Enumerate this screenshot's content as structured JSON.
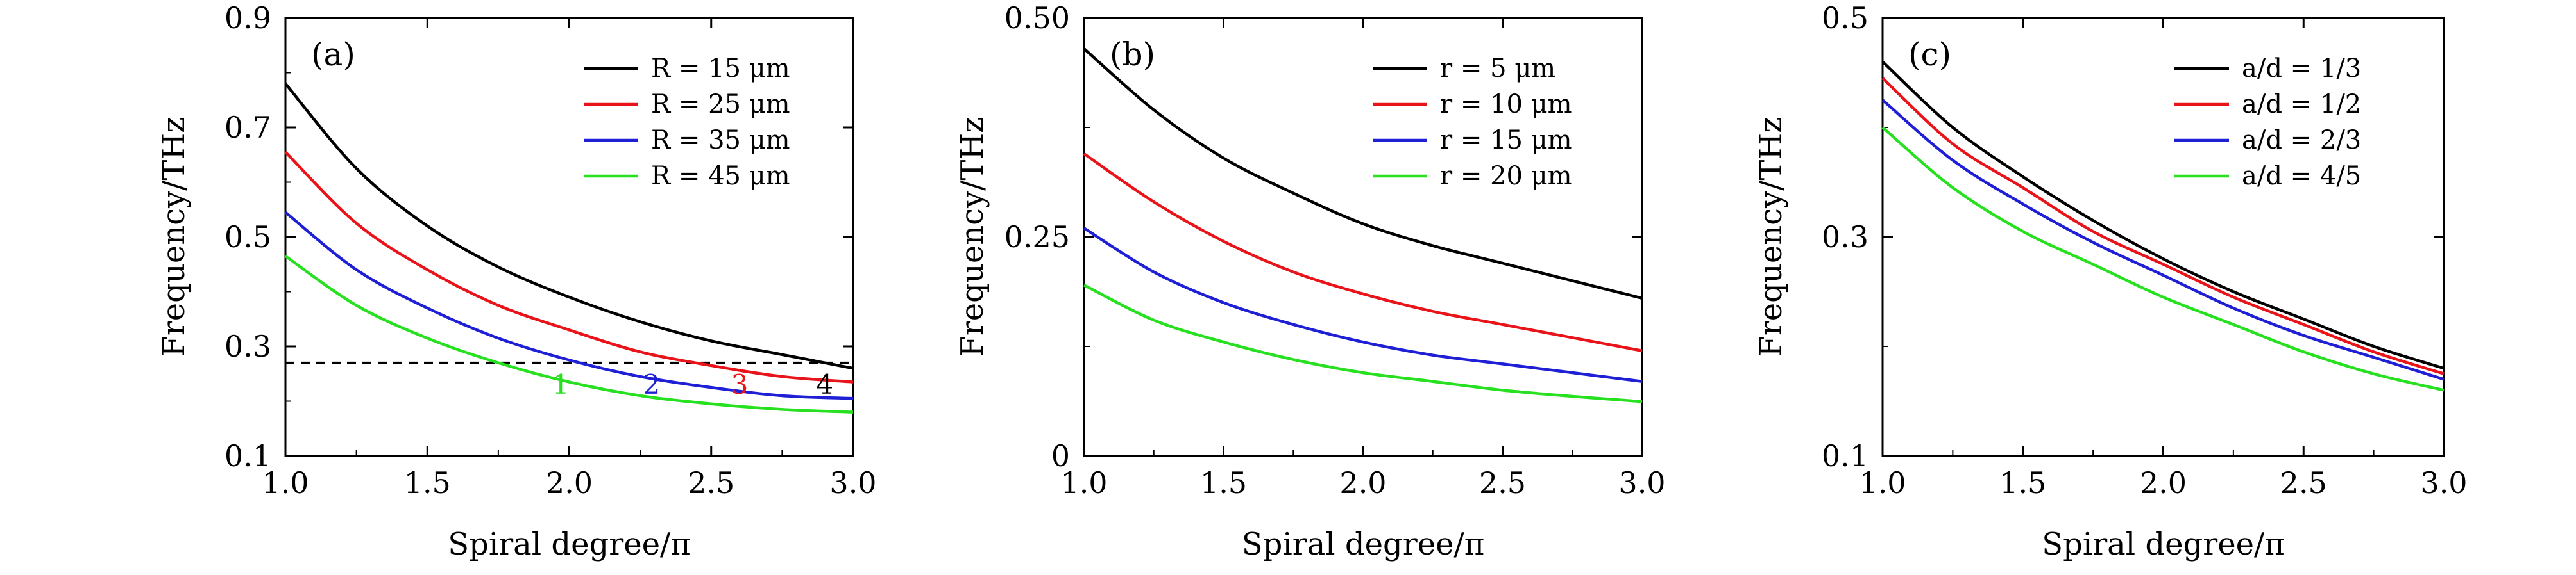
{
  "chart_data": [
    {
      "type": "line",
      "panel_label": "(a)",
      "xlabel": "Spiral degree/π",
      "ylabel": "Frequency/THz",
      "xlim": [
        1.0,
        3.0
      ],
      "ylim": [
        0.1,
        0.9
      ],
      "xticks": [
        "1.0",
        "1.5",
        "2.0",
        "2.5",
        "3.0"
      ],
      "yticks": [
        "0.1",
        "0.3",
        "0.5",
        "0.7",
        "0.9"
      ],
      "legend_position": "top-right",
      "grid": false,
      "x": [
        1.0,
        1.25,
        1.5,
        1.75,
        2.0,
        2.25,
        2.5,
        2.75,
        3.0
      ],
      "series": [
        {
          "name": "R = 15 μm",
          "color": "#000000",
          "values": [
            0.78,
            0.625,
            0.52,
            0.445,
            0.39,
            0.345,
            0.31,
            0.285,
            0.26
          ]
        },
        {
          "name": "R = 25 μm",
          "color": "#e8141a",
          "values": [
            0.655,
            0.525,
            0.44,
            0.375,
            0.33,
            0.29,
            0.265,
            0.245,
            0.235
          ]
        },
        {
          "name": "R = 35 μm",
          "color": "#1f1fd6",
          "values": [
            0.545,
            0.44,
            0.37,
            0.315,
            0.275,
            0.245,
            0.225,
            0.21,
            0.205
          ]
        },
        {
          "name": "R = 45 μm",
          "color": "#27e01f",
          "values": [
            0.465,
            0.375,
            0.315,
            0.27,
            0.235,
            0.21,
            0.195,
            0.185,
            0.18
          ]
        }
      ],
      "reference_line": {
        "y": 0.27,
        "style": "dashed",
        "color": "#000000"
      },
      "annotations": [
        {
          "text": "1",
          "x": 1.97,
          "y": 0.23,
          "color": "#27e01f"
        },
        {
          "text": "2",
          "x": 2.29,
          "y": 0.23,
          "color": "#1f1fd6"
        },
        {
          "text": "3",
          "x": 2.6,
          "y": 0.23,
          "color": "#e8141a"
        },
        {
          "text": "4",
          "x": 2.9,
          "y": 0.23,
          "color": "#000000"
        }
      ]
    },
    {
      "type": "line",
      "panel_label": "(b)",
      "xlabel": "Spiral degree/π",
      "ylabel": "Frequency/THz",
      "xlim": [
        1.0,
        3.0
      ],
      "ylim": [
        0,
        0.5
      ],
      "xticks": [
        "1.0",
        "1.5",
        "2.0",
        "2.5",
        "3.0"
      ],
      "yticks": [
        "0",
        "0.25",
        "0.50"
      ],
      "legend_position": "top-right",
      "grid": false,
      "x": [
        1.0,
        1.25,
        1.5,
        1.75,
        2.0,
        2.25,
        2.5,
        2.75,
        3.0
      ],
      "series": [
        {
          "name": "r = 5 μm",
          "color": "#000000",
          "values": [
            0.465,
            0.395,
            0.34,
            0.3,
            0.265,
            0.24,
            0.22,
            0.2,
            0.18
          ]
        },
        {
          "name": "r = 10 μm",
          "color": "#e8141a",
          "values": [
            0.345,
            0.29,
            0.245,
            0.21,
            0.185,
            0.165,
            0.15,
            0.135,
            0.12
          ]
        },
        {
          "name": "r = 15 μm",
          "color": "#1f1fd6",
          "values": [
            0.26,
            0.21,
            0.175,
            0.15,
            0.13,
            0.115,
            0.105,
            0.095,
            0.085
          ]
        },
        {
          "name": "r = 20 μm",
          "color": "#27e01f",
          "values": [
            0.195,
            0.155,
            0.13,
            0.11,
            0.095,
            0.085,
            0.075,
            0.068,
            0.062
          ]
        }
      ]
    },
    {
      "type": "line",
      "panel_label": "(c)",
      "xlabel": "Spiral degree/π",
      "ylabel": "Frequency/THz",
      "xlim": [
        1.0,
        3.0
      ],
      "ylim": [
        0.1,
        0.5
      ],
      "xticks": [
        "1.0",
        "1.5",
        "2.0",
        "2.5",
        "3.0"
      ],
      "yticks": [
        "0.1",
        "0.3",
        "0.5"
      ],
      "legend_position": "top-right",
      "grid": false,
      "x": [
        1.0,
        1.25,
        1.5,
        1.75,
        2.0,
        2.25,
        2.5,
        2.75,
        3.0
      ],
      "series": [
        {
          "name": "a/d = 1/3",
          "color": "#000000",
          "values": [
            0.46,
            0.4,
            0.355,
            0.315,
            0.28,
            0.25,
            0.225,
            0.2,
            0.18
          ]
        },
        {
          "name": "a/d = 1/2",
          "color": "#e8141a",
          "values": [
            0.445,
            0.385,
            0.345,
            0.305,
            0.275,
            0.245,
            0.22,
            0.195,
            0.175
          ]
        },
        {
          "name": "a/d = 2/3",
          "color": "#1f1fd6",
          "values": [
            0.425,
            0.37,
            0.33,
            0.295,
            0.265,
            0.235,
            0.21,
            0.19,
            0.17
          ]
        },
        {
          "name": "a/d = 4/5",
          "color": "#27e01f",
          "values": [
            0.4,
            0.345,
            0.305,
            0.275,
            0.245,
            0.22,
            0.195,
            0.175,
            0.16
          ]
        }
      ]
    }
  ]
}
